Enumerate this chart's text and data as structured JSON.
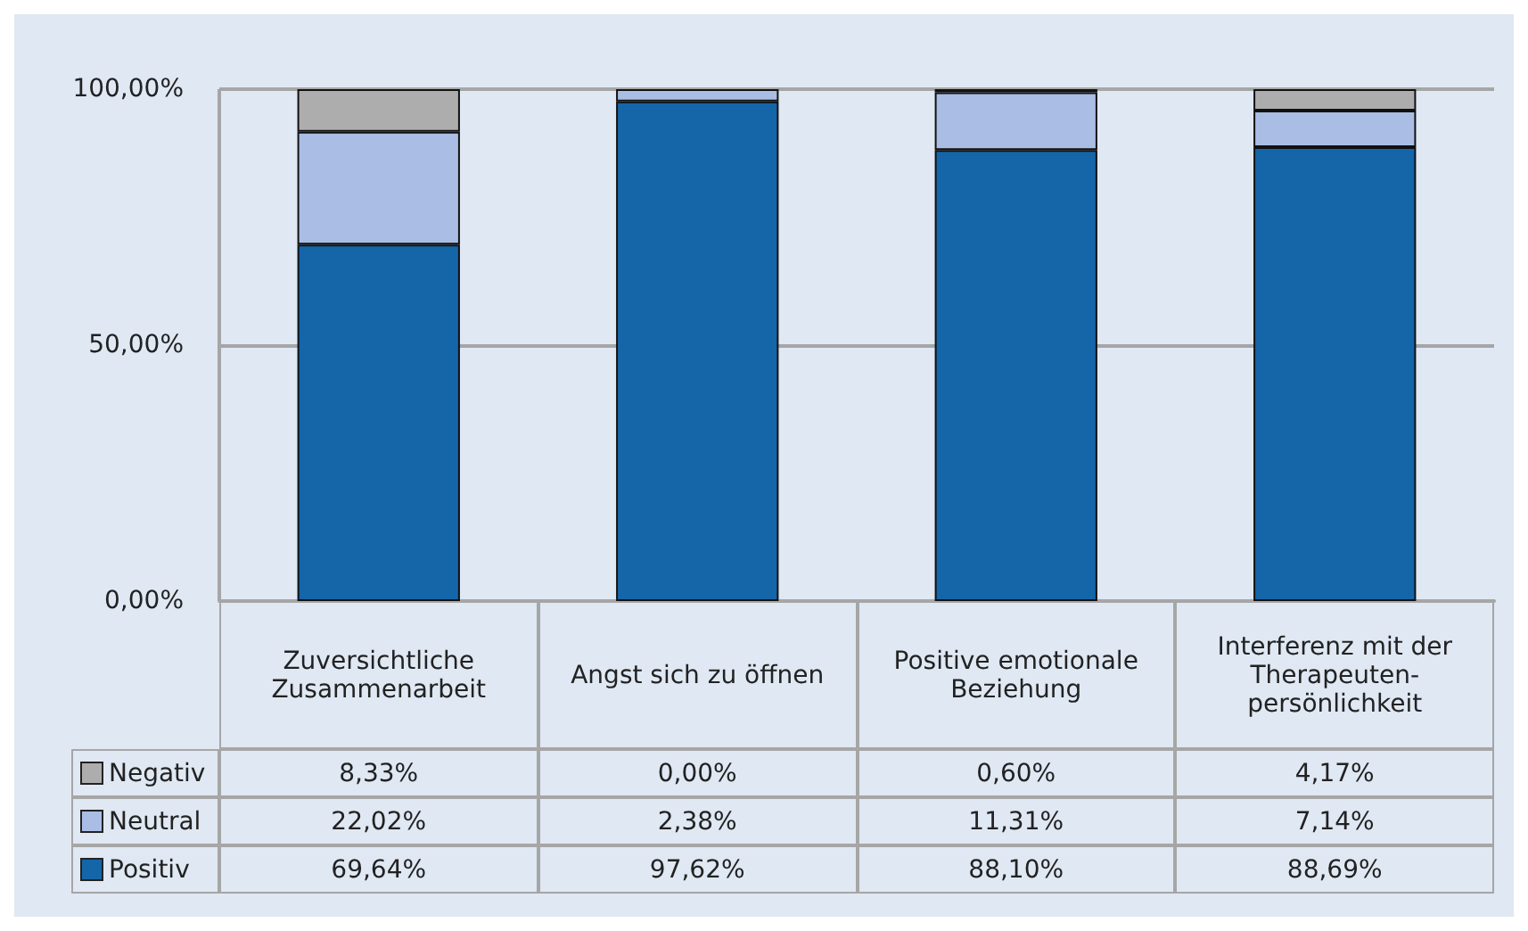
{
  "chart_data": {
    "type": "bar",
    "stacked": true,
    "categories": [
      "Zuversichtliche Zusammenarbeit",
      "Angst sich zu öffnen",
      "Positive emotionale Beziehung",
      "Interferenz mit der Therapeuten-persönlichkeit"
    ],
    "series": [
      {
        "name": "Positiv",
        "color": "#1565a9",
        "values": [
          69.64,
          97.62,
          88.1,
          88.69
        ],
        "value_labels": [
          "69,64%",
          "97,62%",
          "88,10%",
          "88,69%"
        ]
      },
      {
        "name": "Neutral",
        "color": "#aabde4",
        "values": [
          22.02,
          2.38,
          11.31,
          7.14
        ],
        "value_labels": [
          "22,02%",
          "2,38%",
          "11,31%",
          "7,14%"
        ]
      },
      {
        "name": "Negativ",
        "color": "#adadad",
        "values": [
          8.33,
          0.0,
          0.6,
          4.17
        ],
        "value_labels": [
          "8,33%",
          "0,00%",
          "0,60%",
          "4,17%"
        ]
      }
    ],
    "ylim": [
      0,
      100
    ],
    "yticks": [
      {
        "value": 0,
        "label": "0,00%"
      },
      {
        "value": 50,
        "label": "50,00%"
      },
      {
        "value": 100,
        "label": "100,00%"
      }
    ],
    "grid": "y",
    "legend": "bottom"
  }
}
